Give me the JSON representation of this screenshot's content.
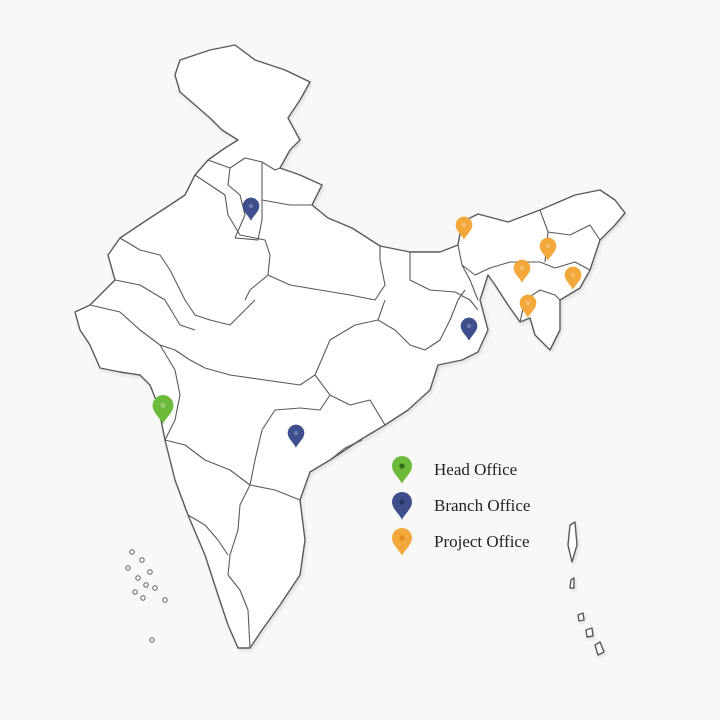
{
  "colors": {
    "background": "#f8f8f8",
    "state_border": "#5a5a5a",
    "head_office": "#6cba3a",
    "branch_office": "#3f4e8c",
    "project_office": "#f2a83a"
  },
  "legend": [
    {
      "label": "Head Office",
      "type": "head",
      "icon": "green-map-pin-icon"
    },
    {
      "label": "Branch Office",
      "type": "branch",
      "icon": "navy-map-pin-icon"
    },
    {
      "label": "Project Office",
      "type": "project",
      "icon": "orange-map-pin-icon"
    }
  ],
  "markers": [
    {
      "name": "head-office-marker",
      "type": "head"
    },
    {
      "name": "branch-office-marker-north",
      "type": "branch"
    },
    {
      "name": "branch-office-marker-east",
      "type": "branch"
    },
    {
      "name": "branch-office-marker-south",
      "type": "branch"
    },
    {
      "name": "project-office-marker-1",
      "type": "project"
    },
    {
      "name": "project-office-marker-2",
      "type": "project"
    },
    {
      "name": "project-office-marker-3",
      "type": "project"
    },
    {
      "name": "project-office-marker-4",
      "type": "project"
    },
    {
      "name": "project-office-marker-5",
      "type": "project"
    }
  ]
}
